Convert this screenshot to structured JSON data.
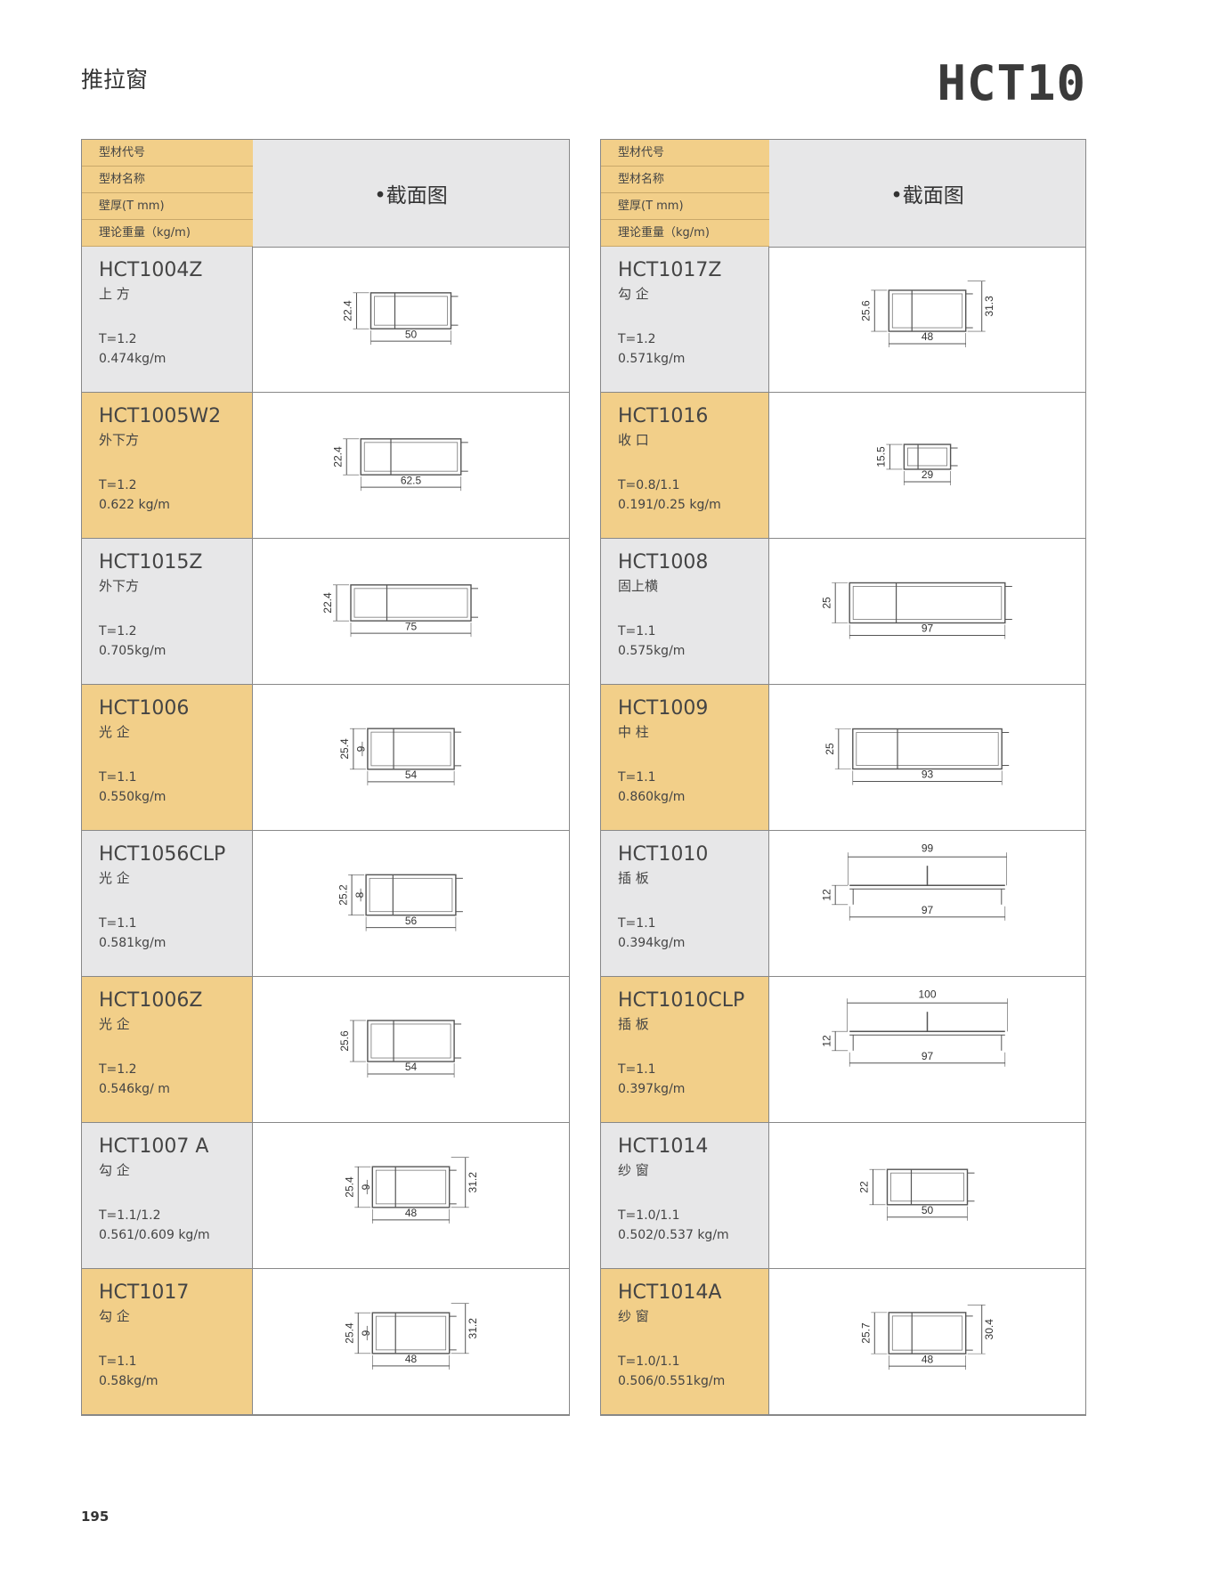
{
  "page_header": {
    "category": "推拉窗",
    "series": "HCT10"
  },
  "table_header": [
    "型材代号",
    "型材名称",
    "壁厚(T mm)",
    "理论重量（kg/m)"
  ],
  "section_label": "•截面图",
  "columns": [
    {
      "items": [
        {
          "code": "HCT1004Z",
          "name": "上 方",
          "thickness": "T=1.2",
          "weight": "0.474kg/m",
          "dims": {
            "width": 50,
            "height": 22.4
          }
        },
        {
          "code": "HCT1005W2",
          "name": "外下方",
          "thickness": "T=1.2",
          "weight": "0.622 kg/m",
          "dims": {
            "width": 62.5,
            "height": 22.4
          }
        },
        {
          "code": "HCT1015Z",
          "name": "外下方",
          "thickness": "T=1.2",
          "weight": "0.705kg/m",
          "dims": {
            "width": 75,
            "height": 22.4
          }
        },
        {
          "code": "HCT1006",
          "name": "光 企",
          "thickness": "T=1.1",
          "weight": "0.550kg/m",
          "dims": {
            "width": 54,
            "height": 25.4,
            "inner": 9
          }
        },
        {
          "code": "HCT1056CLP",
          "name": "光 企",
          "thickness": "T=1.1",
          "weight": "0.581kg/m",
          "dims": {
            "width": 56,
            "height": 25.2,
            "inner": 8
          }
        },
        {
          "code": "HCT1006Z",
          "name": "光 企",
          "thickness": "T=1.2",
          "weight": "0.546kg/ m",
          "dims": {
            "width": 54,
            "height": 25.6
          }
        },
        {
          "code": "HCT1007 A",
          "name": "勾 企",
          "thickness": "T=1.1/1.2",
          "weight": "0.561/0.609 kg/m",
          "dims": {
            "width": 48,
            "height": 25.4,
            "inner": 9,
            "right": 31.2
          }
        },
        {
          "code": "HCT1017",
          "name": "勾 企",
          "thickness": "T=1.1",
          "weight": "0.58kg/m",
          "dims": {
            "width": 48,
            "height": 25.4,
            "inner": 9,
            "right": 31.2
          }
        }
      ]
    },
    {
      "items": [
        {
          "code": "HCT1017Z",
          "name": "勾 企",
          "thickness": "T=1.2",
          "weight": "0.571kg/m",
          "dims": {
            "width": 48,
            "height": 25.6,
            "right": 31.3
          }
        },
        {
          "code": "HCT1016",
          "name": "收 口",
          "thickness": "T=0.8/1.1",
          "weight": "0.191/0.25 kg/m",
          "dims": {
            "width": 29,
            "height": 15.5
          }
        },
        {
          "code": "HCT1008",
          "name": "固上横",
          "thickness": "T=1.1",
          "weight": "0.575kg/m",
          "dims": {
            "width": 97,
            "height": 25
          }
        },
        {
          "code": "HCT1009",
          "name": "中 柱",
          "thickness": "T=1.1",
          "weight": "0.860kg/m",
          "dims": {
            "width": 93,
            "height": 25
          }
        },
        {
          "code": "HCT1010",
          "name": "插 板",
          "thickness": "T=1.1",
          "weight": "0.394kg/m",
          "dims": {
            "width": 97,
            "height": 12,
            "top": 99
          }
        },
        {
          "code": "HCT1010CLP",
          "name": "插 板",
          "thickness": "T=1.1",
          "weight": "0.397kg/m",
          "dims": {
            "width": 97,
            "height": 12,
            "top": 100
          }
        },
        {
          "code": "HCT1014",
          "name": "纱 窗",
          "thickness": "T=1.0/1.1",
          "weight": "0.502/0.537 kg/m",
          "dims": {
            "width": 50,
            "height": 22
          }
        },
        {
          "code": "HCT1014A",
          "name": "纱 窗",
          "thickness": "T=1.0/1.1",
          "weight": "0.506/0.551kg/m",
          "dims": {
            "width": 48,
            "height": 25.7,
            "right": 30.4
          }
        }
      ]
    }
  ],
  "page_number": "195"
}
